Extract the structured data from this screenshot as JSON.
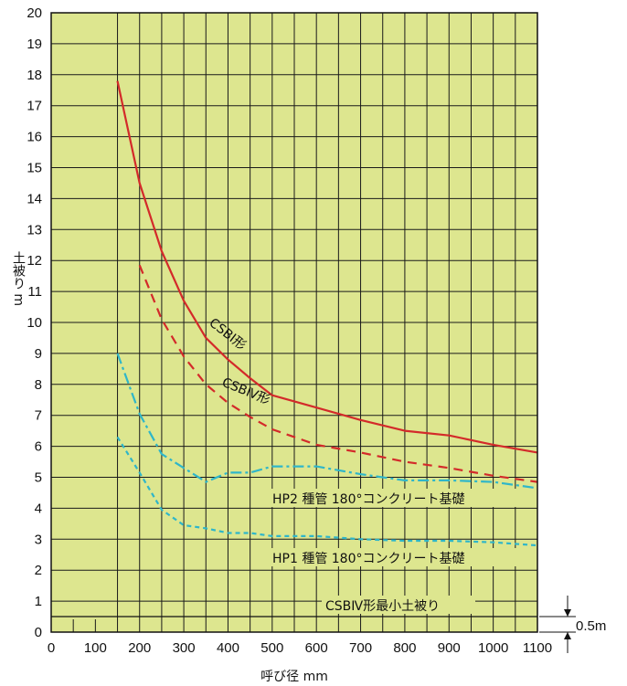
{
  "chart_data": {
    "type": "line",
    "xlabel": "呼び径 mm",
    "ylabel": "土被り m",
    "xlim": [
      0,
      1100
    ],
    "ylim": [
      0,
      20
    ],
    "x_ticks": [
      "0",
      "100",
      "200",
      "300",
      "400",
      "500",
      "600",
      "700",
      "800",
      "900",
      "1000",
      "1100"
    ],
    "y_ticks": [
      "0",
      "1",
      "2",
      "3",
      "4",
      "5",
      "6",
      "7",
      "8",
      "9",
      "10",
      "11",
      "12",
      "13",
      "14",
      "15",
      "16",
      "17",
      "18",
      "19",
      "20"
    ],
    "grid": true,
    "background_color": "#dde68f",
    "series": [
      {
        "name": "CSB I 形",
        "color": "#d32a2a",
        "style": "solid",
        "x": [
          150,
          200,
          250,
          300,
          350,
          400,
          450,
          500,
          600,
          700,
          800,
          900,
          1000,
          1100
        ],
        "y": [
          17.8,
          14.5,
          12.3,
          10.7,
          9.5,
          8.8,
          8.2,
          7.65,
          7.25,
          6.85,
          6.5,
          6.35,
          6.05,
          5.8
        ]
      },
      {
        "name": "CSB IV 形",
        "color": "#d32a2a",
        "style": "dashed",
        "x": [
          200,
          250,
          300,
          350,
          400,
          450,
          500,
          600,
          700,
          800,
          900,
          1000,
          1100
        ],
        "y": [
          11.85,
          10.1,
          8.9,
          8.0,
          7.4,
          6.95,
          6.55,
          6.05,
          5.8,
          5.5,
          5.3,
          5.05,
          4.85
        ]
      },
      {
        "name": "HP2 種管 180°コンクリート基礎",
        "color": "#2fb6c9",
        "style": "dashdot",
        "x": [
          150,
          200,
          250,
          300,
          350,
          400,
          450,
          500,
          600,
          700,
          800,
          900,
          1000,
          1100
        ],
        "y": [
          9.0,
          7.05,
          5.75,
          5.3,
          4.85,
          5.15,
          5.15,
          5.35,
          5.35,
          5.1,
          4.9,
          4.9,
          4.85,
          4.65
        ]
      },
      {
        "name": "HP1 種管 180°コンクリート基礎",
        "color": "#2fb6c9",
        "style": "dotted",
        "x": [
          150,
          200,
          250,
          300,
          350,
          400,
          450,
          500,
          600,
          700,
          800,
          900,
          1000,
          1100
        ],
        "y": [
          6.3,
          5.15,
          3.95,
          3.45,
          3.35,
          3.2,
          3.2,
          3.1,
          3.1,
          3.0,
          2.95,
          2.95,
          2.9,
          2.8
        ]
      },
      {
        "name": "CSBⅣ形最小土被り",
        "color": "#111111",
        "style": "solid",
        "x": [
          0,
          1100
        ],
        "y": [
          0.5,
          0.5
        ]
      }
    ],
    "annotations": {
      "csb1": "CSBⅠ形",
      "csb4": "CSBⅣ形",
      "hp2": "HP2 種管 180°コンクリート基礎",
      "hp1": "HP1 種管 180°コンクリート基礎",
      "min_cover": "CSBⅣ形最小土被り",
      "dim": "0.5m"
    }
  }
}
